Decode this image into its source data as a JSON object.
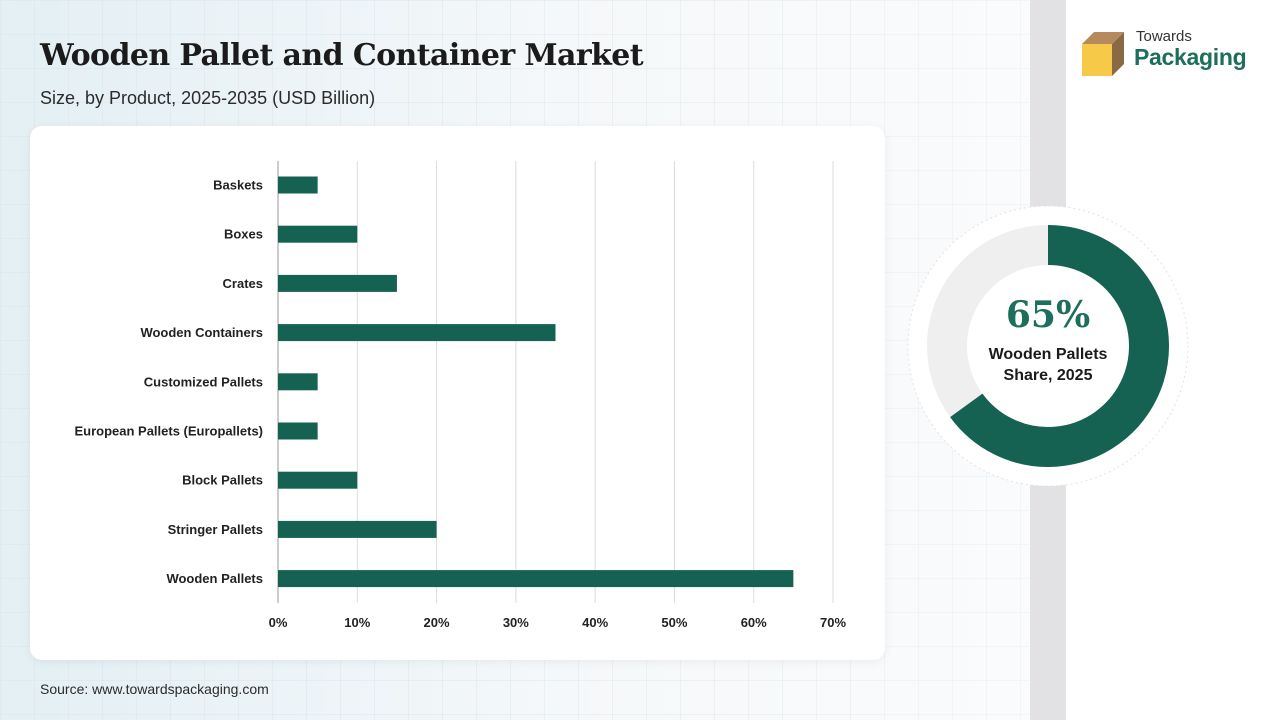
{
  "header": {
    "title": "Wooden Pallet and Container Market",
    "subtitle": "Size, by Product, 2025-2035 (USD Billion)"
  },
  "logo": {
    "line1": "Towards",
    "line2": "Packaging",
    "icon": "box-icon"
  },
  "chart_data": {
    "type": "bar",
    "orientation": "horizontal",
    "categories": [
      "Baskets",
      "Boxes",
      "Crates",
      "Wooden Containers",
      "Customized Pallets",
      "European Pallets (Europallets)",
      "Block Pallets",
      "Stringer Pallets",
      "Wooden Pallets"
    ],
    "values": [
      5,
      10,
      15,
      35,
      5,
      5,
      10,
      20,
      65
    ],
    "xlim": [
      0,
      70
    ],
    "xticks": [
      0,
      10,
      20,
      30,
      40,
      50,
      60,
      70
    ],
    "tick_labels": [
      "0%",
      "10%",
      "20%",
      "30%",
      "40%",
      "50%",
      "60%",
      "70%"
    ],
    "xlabel": "",
    "ylabel": "",
    "grid": true,
    "bar_color": "#156152"
  },
  "highlight": {
    "percent_value": 65,
    "percent_label": "65%",
    "line1": "Wooden Pallets",
    "line2": "Share, 2025",
    "color": "#156152",
    "track_color": "#efefef"
  },
  "footer": {
    "source": "Source: www.towardspackaging.com"
  }
}
